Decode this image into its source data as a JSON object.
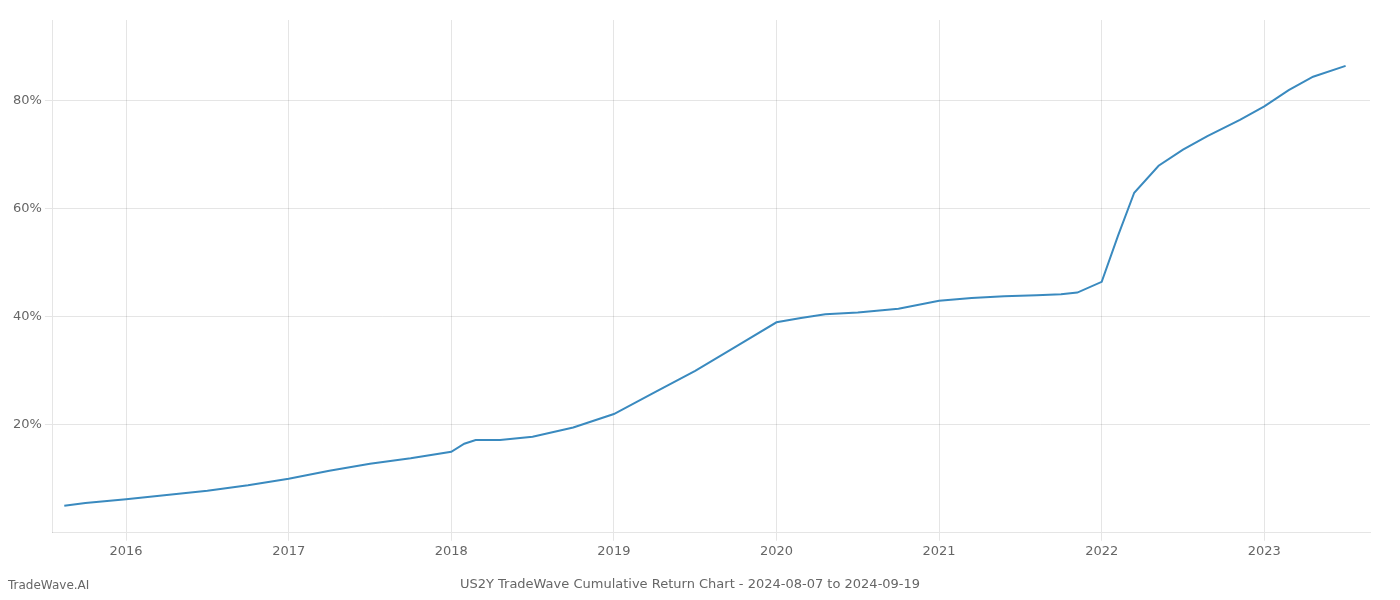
{
  "chart_data": {
    "type": "line",
    "title": "US2Y TradeWave Cumulative Return Chart - 2024-08-07 to 2024-09-19",
    "annotations": [
      "TradeWave.AI"
    ],
    "x": [
      2015.62,
      2015.75,
      2016.0,
      2016.25,
      2016.5,
      2016.75,
      2017.0,
      2017.25,
      2017.5,
      2017.75,
      2018.0,
      2018.08,
      2018.15,
      2018.3,
      2018.5,
      2018.75,
      2019.0,
      2019.25,
      2019.5,
      2019.75,
      2020.0,
      2020.15,
      2020.3,
      2020.5,
      2020.75,
      2021.0,
      2021.2,
      2021.4,
      2021.6,
      2021.75,
      2021.85,
      2022.0,
      2022.1,
      2022.2,
      2022.35,
      2022.5,
      2022.65,
      2022.85,
      2023.0,
      2023.15,
      2023.3,
      2023.5
    ],
    "values": [
      5.0,
      5.5,
      6.2,
      7.0,
      7.8,
      8.8,
      10.0,
      11.5,
      12.8,
      13.8,
      15.0,
      16.5,
      17.2,
      17.2,
      17.8,
      19.5,
      22.0,
      26.0,
      30.0,
      34.5,
      39.0,
      39.8,
      40.5,
      40.8,
      41.5,
      43.0,
      43.5,
      43.8,
      44.0,
      44.2,
      44.5,
      46.5,
      55.0,
      63.0,
      68.0,
      71.0,
      73.5,
      76.5,
      79.0,
      82.0,
      84.5,
      86.5
    ],
    "color": "#3a8abf",
    "xlim": [
      2015.55,
      2023.65
    ],
    "ylim": [
      0,
      95
    ],
    "xticks": [
      2016,
      2017,
      2018,
      2019,
      2020,
      2021,
      2022,
      2023
    ],
    "yticks": [
      {
        "value": 20,
        "label": "20%"
      },
      {
        "value": 40,
        "label": "40%"
      },
      {
        "value": 60,
        "label": "60%"
      },
      {
        "value": 80,
        "label": "80%"
      }
    ],
    "grid": true
  }
}
